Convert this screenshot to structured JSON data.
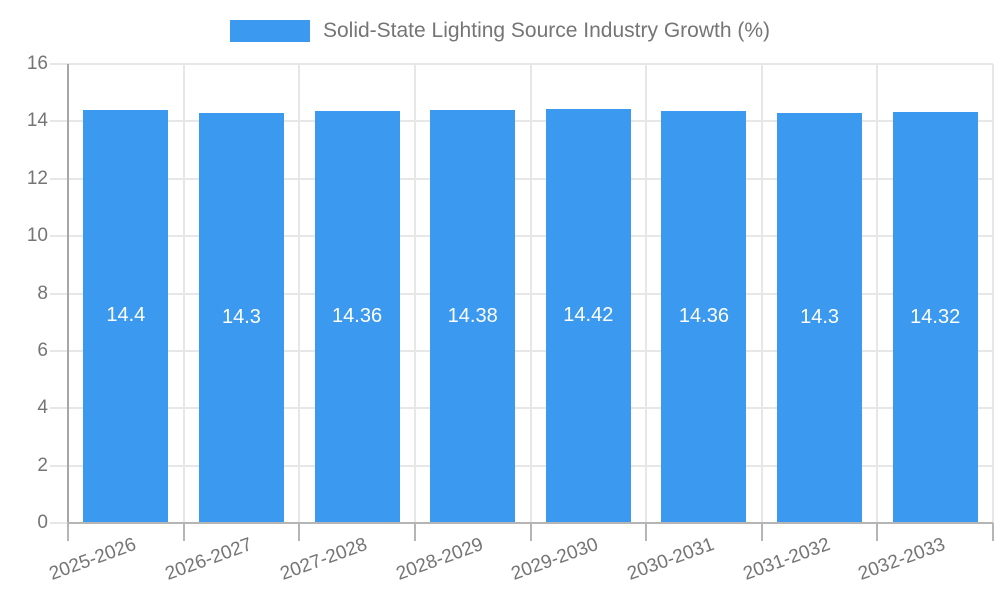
{
  "chart_data": {
    "type": "bar",
    "title": "Solid-State Lighting Source Industry Growth (%)",
    "categories": [
      "2025-2026",
      "2026-2027",
      "2027-2028",
      "2028-2029",
      "2029-2030",
      "2030-2031",
      "2031-2032",
      "2032-2033"
    ],
    "values": [
      14.4,
      14.3,
      14.36,
      14.38,
      14.42,
      14.36,
      14.3,
      14.32
    ],
    "value_labels": [
      "14.4",
      "14.3",
      "14.36",
      "14.38",
      "14.42",
      "14.36",
      "14.3",
      "14.32"
    ],
    "xlabel": "",
    "ylabel": "",
    "ylim": [
      0,
      16
    ],
    "yticks": [
      0,
      2,
      4,
      6,
      8,
      10,
      12,
      14,
      16
    ],
    "grid": true,
    "legend_position": "top",
    "colors": {
      "bar": "#3b99ef",
      "bar_value_text": "#ffffff",
      "axis_text": "#757575",
      "gridline": "#e7e7e7",
      "y_axis_line": "#a6a6a6",
      "x_axis_line": "#b5b5b5",
      "background": "#ffffff"
    }
  }
}
